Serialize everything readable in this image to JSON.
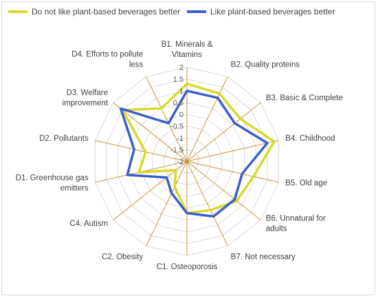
{
  "chart_data": {
    "type": "radar",
    "categories": [
      "B1. Minerals & Vitamins",
      "B2. Quality proteins",
      "B3. Basic & Complete",
      "B4. Childhood",
      "B5. Old age",
      "B6. Unnatural for adults",
      "B7. Not necessary",
      "C1. Osteoporosis",
      "C2. Obesity",
      "C4. Autism",
      "D1. Greenhouse gas emitters",
      "D2. Pollutants",
      "D3. Welfare improvement",
      "D4. Efforts to pollute less"
    ],
    "category_lines": [
      [
        "B1. Minerals &",
        "Vitamins"
      ],
      [
        "B2. Quality proteins"
      ],
      [
        "B3. Basic & Complete"
      ],
      [
        "B4. Childhood"
      ],
      [
        "B5. Old age"
      ],
      [
        "B6. Unnatural for",
        "adults"
      ],
      [
        "B7. Not necessary"
      ],
      [
        "C1. Osteoporosis"
      ],
      [
        "C2. Obesity"
      ],
      [
        "C4. Autism"
      ],
      [
        "D1. Greenhouse gas",
        "emitters"
      ],
      [
        "D2. Pollutants"
      ],
      [
        "D3. Welfare",
        "improvement"
      ],
      [
        "D4. Efforts to pollute",
        "less"
      ]
    ],
    "rlim": [
      -2,
      2
    ],
    "ticks": [
      "-2",
      "-1.5",
      "-1",
      "-0.5",
      "0",
      "0.5",
      "1",
      "1.5",
      "2"
    ],
    "tick_values": [
      -2,
      -1.5,
      -1,
      -0.5,
      0,
      0.5,
      1,
      1.5,
      2
    ],
    "series": [
      {
        "name": "Do not like plant-based beverages better",
        "color": "#d9d92b",
        "values": [
          1.3,
          1.2,
          0.9,
          1.8,
          0.9,
          0.7,
          0.3,
          0.2,
          -0.8,
          -1.4,
          0.1,
          -0.2,
          1.5,
          0.5
        ]
      },
      {
        "name": "Like plant-based beverages better",
        "color": "#3a5fc8",
        "values": [
          1.0,
          1.0,
          0.6,
          1.5,
          0.4,
          0.6,
          0.6,
          0.2,
          -0.5,
          -0.9,
          0.6,
          0.3,
          1.6,
          -0.2
        ]
      }
    ],
    "grid": true,
    "legend_position": "top"
  }
}
